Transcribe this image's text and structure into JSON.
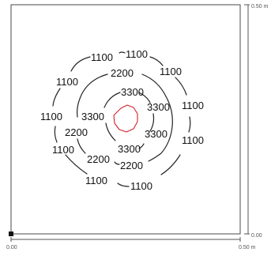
{
  "diagram": {
    "axes": {
      "x_min_label": "0.00",
      "x_max_label": "0.50 m",
      "y_min_label": "0.00",
      "y_max_label": "0.50 m"
    },
    "contour_levels": [
      "1100",
      "2200",
      "3300"
    ],
    "labels": {
      "l1100_top_left": "1100",
      "l1100_top_right": "1100",
      "l1100_upper_left": "1100",
      "l1100_upper_right": "1100",
      "l1100_mid_left": "1100",
      "l1100_mid_right": "1100",
      "l1100_lower_left": "1100",
      "l1100_lower_right": "1100",
      "l1100_bottom_left": "1100",
      "l1100_bottom_right": "1100",
      "l2200_top": "2200",
      "l2200_left": "2200",
      "l2200_bottom_left": "2200",
      "l2200_bottom_right": "2200",
      "l3300_top": "3300",
      "l3300_right_top": "3300",
      "l3300_left": "3300",
      "l3300_right_bottom": "3300",
      "l3300_bottom": "3300"
    },
    "colors": {
      "contour": "#222222",
      "inner_contour": "#d21f2a",
      "frame": "#4a4a4a"
    }
  }
}
